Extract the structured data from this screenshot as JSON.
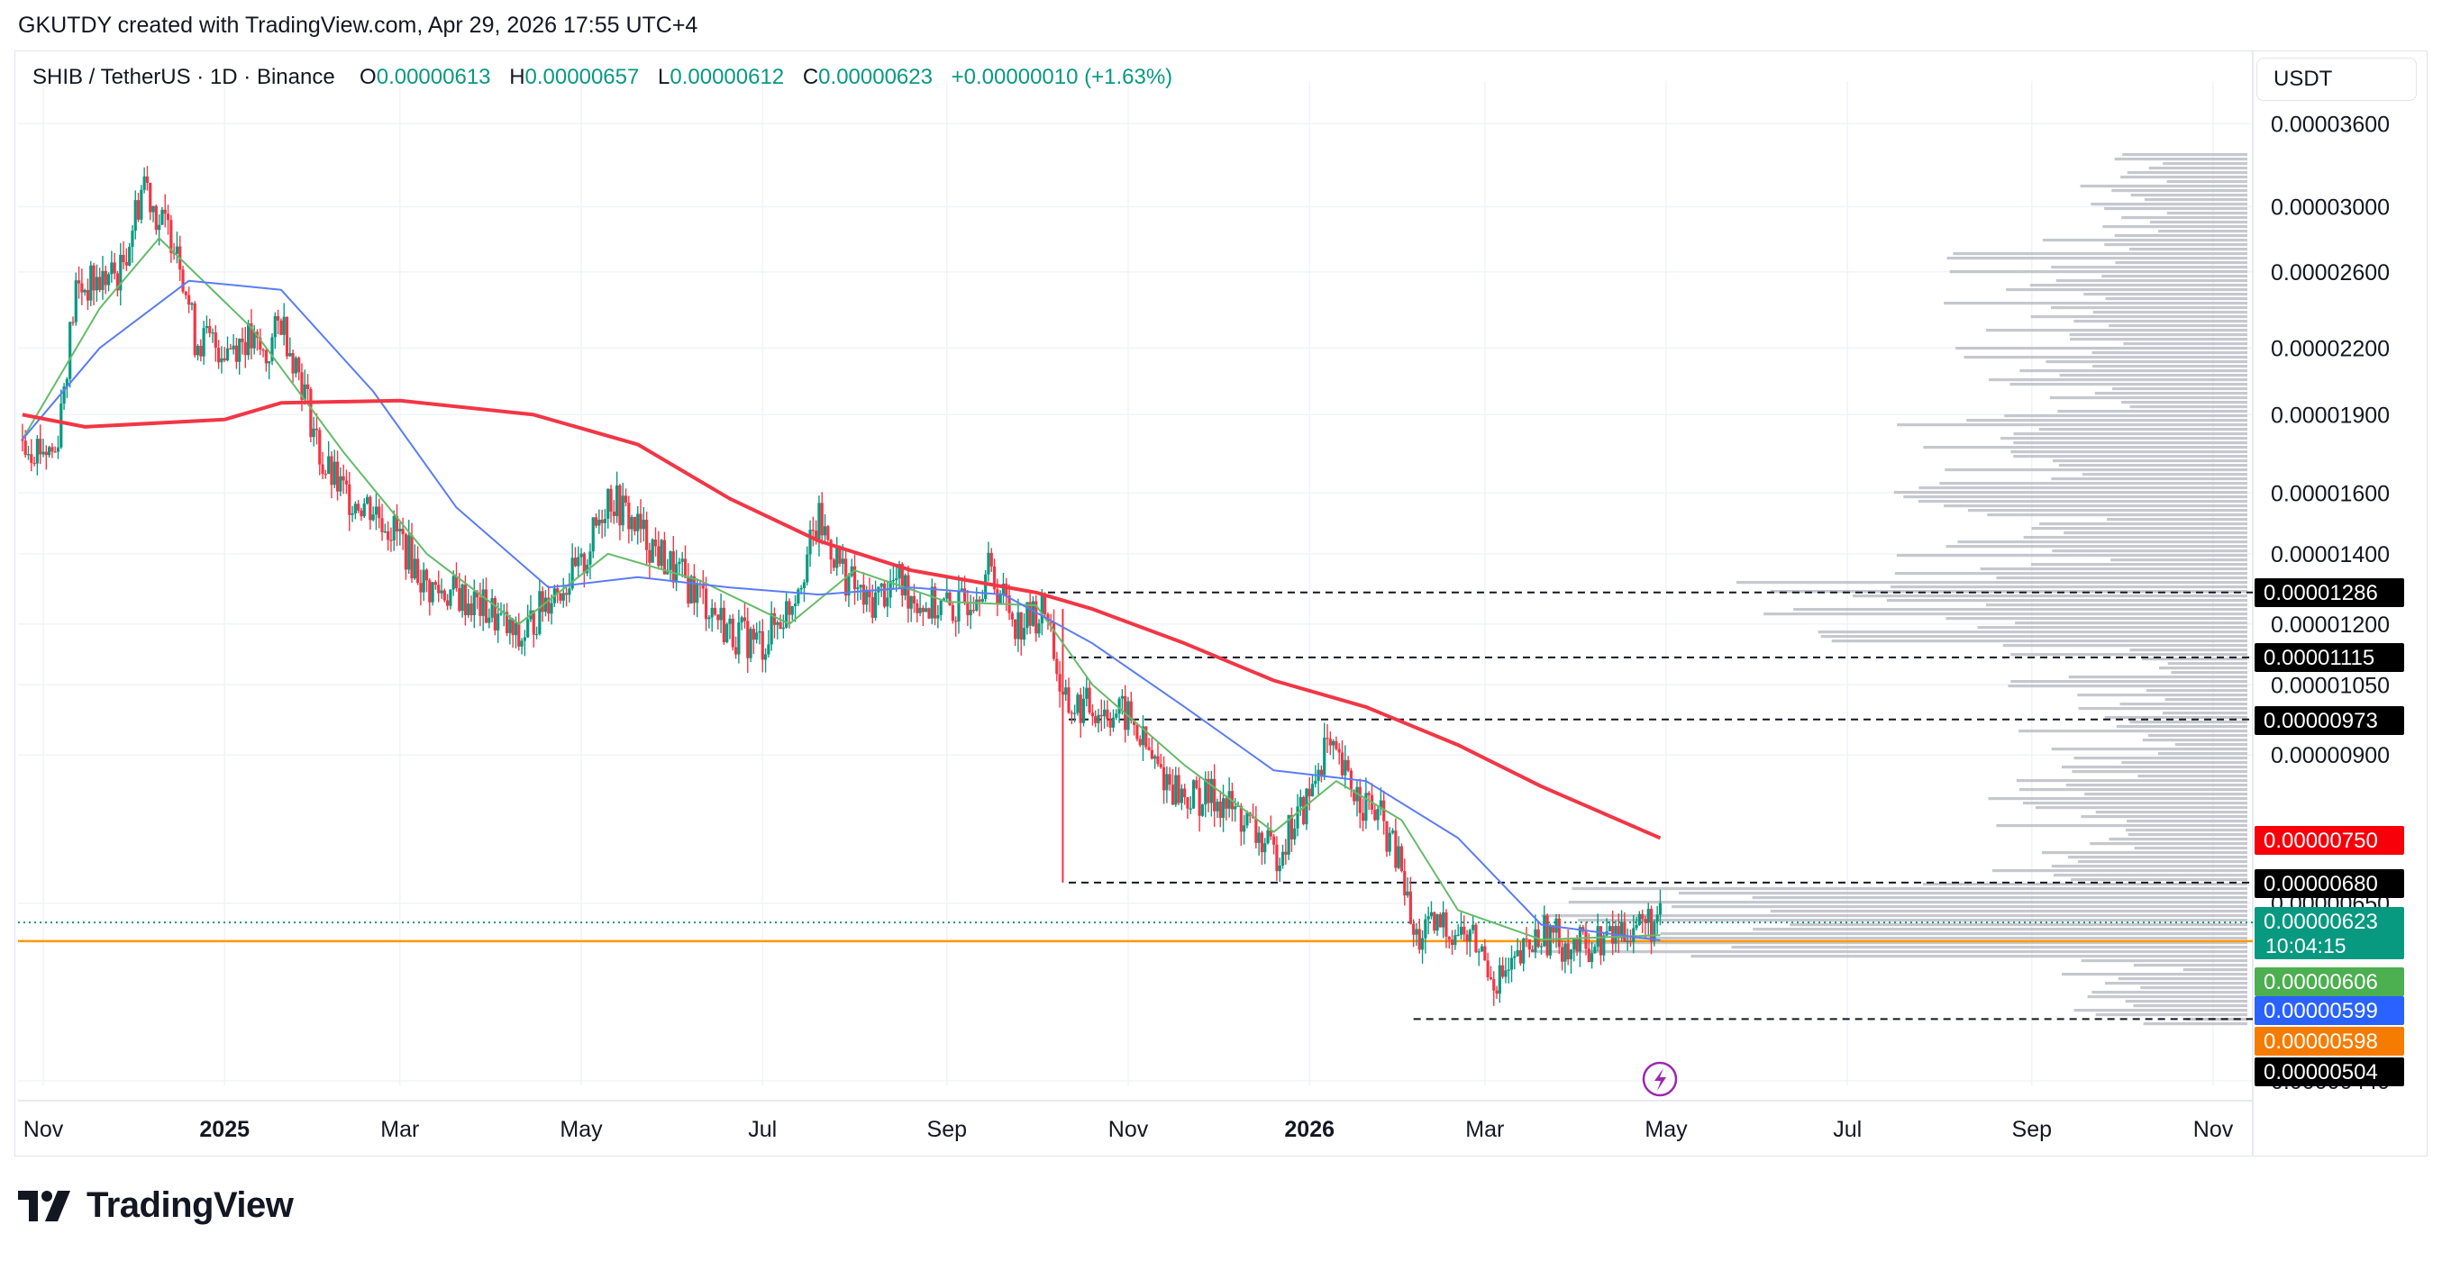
{
  "header": {
    "attribution": "GKUTDY created with TradingView.com, Apr 29, 2026 17:55 UTC+4"
  },
  "legend": {
    "symbol": "SHIB / TetherUS · 1D · Binance",
    "open_key": "O",
    "open": "0.00000613",
    "high_key": "H",
    "high": "0.00000657",
    "low_key": "L",
    "low": "0.00000612",
    "close_key": "C",
    "close": "0.00000623",
    "change": "+0.00000010 (+1.63%)"
  },
  "currency_button": "USDT",
  "footer": {
    "brand": "TradingView"
  },
  "colors": {
    "up": "#089981",
    "down": "#f23645",
    "ma_long": "#f23645",
    "ma_mid": "#5b7cf5",
    "ma_short": "#66bb6a",
    "volume_profile": "#b2b5be",
    "poc_line": "#ff9800"
  },
  "chart_data": {
    "type": "candlestick",
    "y_scale": "log",
    "ylim": [
      "0.00000420",
      "0.00004000"
    ],
    "x_tick_labels": [
      {
        "label": "Nov",
        "date": "2024-11-01",
        "bold": false
      },
      {
        "label": "2025",
        "date": "2025-01-01",
        "bold": true
      },
      {
        "label": "Mar",
        "date": "2025-03-01",
        "bold": false
      },
      {
        "label": "May",
        "date": "2025-05-01",
        "bold": false
      },
      {
        "label": "Jul",
        "date": "2025-07-01",
        "bold": false
      },
      {
        "label": "Sep",
        "date": "2025-09-01",
        "bold": false
      },
      {
        "label": "Nov",
        "date": "2025-11-01",
        "bold": false
      },
      {
        "label": "2026",
        "date": "2026-01-01",
        "bold": true
      },
      {
        "label": "Mar",
        "date": "2026-03-01",
        "bold": false
      },
      {
        "label": "May",
        "date": "2026-05-01",
        "bold": false
      },
      {
        "label": "Jul",
        "date": "2026-07-01",
        "bold": false
      },
      {
        "label": "Sep",
        "date": "2026-09-01",
        "bold": false
      },
      {
        "label": "Nov",
        "date": "2026-11-01",
        "bold": false
      }
    ],
    "y_tick_labels": [
      "0.00003600",
      "0.00003000",
      "0.00002600",
      "0.00002200",
      "0.00001900",
      "0.00001600",
      "0.00001400",
      "0.00001200",
      "0.00001050",
      "0.00000900",
      "0.00000650",
      "0.00000440"
    ],
    "price_series": [
      [
        "2024-10-25",
        1.8e-05
      ],
      [
        "2024-11-05",
        1.75e-05
      ],
      [
        "2024-11-12",
        2.5e-05
      ],
      [
        "2024-11-20",
        2.55e-05
      ],
      [
        "2024-11-27",
        2.6e-05
      ],
      [
        "2024-12-05",
        3.2e-05
      ],
      [
        "2024-12-10",
        2.9e-05
      ],
      [
        "2024-12-16",
        2.8e-05
      ],
      [
        "2024-12-22",
        2.25e-05
      ],
      [
        "2025-01-01",
        2.2e-05
      ],
      [
        "2025-01-08",
        2.25e-05
      ],
      [
        "2025-01-15",
        2.15e-05
      ],
      [
        "2025-01-20",
        2.35e-05
      ],
      [
        "2025-01-27",
        2.05e-05
      ],
      [
        "2025-02-03",
        1.7e-05
      ],
      [
        "2025-02-10",
        1.6e-05
      ],
      [
        "2025-02-20",
        1.55e-05
      ],
      [
        "2025-03-01",
        1.45e-05
      ],
      [
        "2025-03-10",
        1.3e-05
      ],
      [
        "2025-03-20",
        1.28e-05
      ],
      [
        "2025-04-01",
        1.23e-05
      ],
      [
        "2025-04-10",
        1.15e-05
      ],
      [
        "2025-04-20",
        1.28e-05
      ],
      [
        "2025-05-01",
        1.35e-05
      ],
      [
        "2025-05-10",
        1.6e-05
      ],
      [
        "2025-05-20",
        1.48e-05
      ],
      [
        "2025-06-01",
        1.35e-05
      ],
      [
        "2025-06-10",
        1.28e-05
      ],
      [
        "2025-06-20",
        1.18e-05
      ],
      [
        "2025-07-01",
        1.15e-05
      ],
      [
        "2025-07-10",
        1.25e-05
      ],
      [
        "2025-07-20",
        1.5e-05
      ],
      [
        "2025-07-28",
        1.35e-05
      ],
      [
        "2025-08-05",
        1.25e-05
      ],
      [
        "2025-08-15",
        1.32e-05
      ],
      [
        "2025-08-25",
        1.25e-05
      ],
      [
        "2025-09-05",
        1.24e-05
      ],
      [
        "2025-09-15",
        1.35e-05
      ],
      [
        "2025-09-25",
        1.2e-05
      ],
      [
        "2025-10-05",
        1.24e-05
      ],
      [
        "2025-10-10",
        1e-05
      ],
      [
        "2025-10-20",
        1e-05
      ],
      [
        "2025-11-01",
        9.8e-06
      ],
      [
        "2025-11-10",
        8.8e-06
      ],
      [
        "2025-11-20",
        8.2e-06
      ],
      [
        "2025-12-01",
        8.2e-06
      ],
      [
        "2025-12-10",
        7.8e-06
      ],
      [
        "2025-12-20",
        7.2e-06
      ],
      [
        "2026-01-01",
        8.2e-06
      ],
      [
        "2026-01-06",
        9.2e-06
      ],
      [
        "2026-01-15",
        8.4e-06
      ],
      [
        "2026-01-25",
        7.8e-06
      ],
      [
        "2026-02-01",
        7e-06
      ],
      [
        "2026-02-05",
        6e-06
      ],
      [
        "2026-02-15",
        6.2e-06
      ],
      [
        "2026-02-25",
        6e-06
      ],
      [
        "2026-03-05",
        5.5e-06
      ],
      [
        "2026-03-10",
        5.6e-06
      ],
      [
        "2026-03-20",
        6.1e-06
      ],
      [
        "2026-04-01",
        5.9e-06
      ],
      [
        "2026-04-10",
        6e-06
      ],
      [
        "2026-04-20",
        6.2e-06
      ],
      [
        "2026-04-29",
        6.23e-06
      ]
    ],
    "ma_long": [
      [
        "2024-10-25",
        1.9e-05
      ],
      [
        "2024-11-15",
        1.85e-05
      ],
      [
        "2025-01-01",
        1.88e-05
      ],
      [
        "2025-01-20",
        1.95e-05
      ],
      [
        "2025-03-01",
        1.96e-05
      ],
      [
        "2025-04-15",
        1.9e-05
      ],
      [
        "2025-05-20",
        1.78e-05
      ],
      [
        "2025-06-20",
        1.58e-05
      ],
      [
        "2025-07-20",
        1.44e-05
      ],
      [
        "2025-08-20",
        1.35e-05
      ],
      [
        "2025-10-01",
        1.286e-05
      ],
      [
        "2025-10-20",
        1.24e-05
      ],
      [
        "2025-11-20",
        1.15e-05
      ],
      [
        "2025-12-20",
        1.06e-05
      ],
      [
        "2026-01-20",
        1e-05
      ],
      [
        "2026-02-20",
        9.2e-06
      ],
      [
        "2026-03-20",
        8.4e-06
      ],
      [
        "2026-04-29",
        7.5e-06
      ]
    ],
    "ma_mid": [
      [
        "2024-10-25",
        1.8e-05
      ],
      [
        "2024-11-20",
        2.2e-05
      ],
      [
        "2024-12-20",
        2.55e-05
      ],
      [
        "2025-01-20",
        2.5e-05
      ],
      [
        "2025-02-20",
        2e-05
      ],
      [
        "2025-03-20",
        1.55e-05
      ],
      [
        "2025-04-20",
        1.3e-05
      ],
      [
        "2025-05-20",
        1.33e-05
      ],
      [
        "2025-06-20",
        1.3e-05
      ],
      [
        "2025-07-20",
        1.28e-05
      ],
      [
        "2025-08-20",
        1.3e-05
      ],
      [
        "2025-09-20",
        1.28e-05
      ],
      [
        "2025-10-20",
        1.15e-05
      ],
      [
        "2025-11-20",
        1e-05
      ],
      [
        "2025-12-20",
        8.7e-06
      ],
      [
        "2026-01-20",
        8.5e-06
      ],
      [
        "2026-02-20",
        7.5e-06
      ],
      [
        "2026-03-20",
        6.2e-06
      ],
      [
        "2026-04-29",
        5.99e-06
      ]
    ],
    "ma_short": [
      [
        "2024-10-25",
        1.8e-05
      ],
      [
        "2024-11-20",
        2.4e-05
      ],
      [
        "2024-12-10",
        2.8e-05
      ],
      [
        "2025-01-10",
        2.3e-05
      ],
      [
        "2025-02-10",
        1.75e-05
      ],
      [
        "2025-03-10",
        1.4e-05
      ],
      [
        "2025-04-10",
        1.2e-05
      ],
      [
        "2025-05-10",
        1.4e-05
      ],
      [
        "2025-06-10",
        1.32e-05
      ],
      [
        "2025-07-10",
        1.2e-05
      ],
      [
        "2025-08-01",
        1.35e-05
      ],
      [
        "2025-09-01",
        1.26e-05
      ],
      [
        "2025-10-01",
        1.25e-05
      ],
      [
        "2025-10-20",
        1.05e-05
      ],
      [
        "2025-11-20",
        8.8e-06
      ],
      [
        "2025-12-20",
        7.6e-06
      ],
      [
        "2026-01-10",
        8.5e-06
      ],
      [
        "2026-02-01",
        7.8e-06
      ],
      [
        "2026-02-20",
        6.4e-06
      ],
      [
        "2026-03-20",
        6e-06
      ],
      [
        "2026-04-29",
        6.06e-06
      ]
    ],
    "horizontal_levels": [
      {
        "price": "0.00001286",
        "from": "2025-10-05",
        "style": "dashed"
      },
      {
        "price": "0.00001115",
        "from": "2025-10-12",
        "style": "dashed"
      },
      {
        "price": "0.00000973",
        "from": "2025-10-12",
        "style": "dashed"
      },
      {
        "price": "0.00000680",
        "from": "2025-10-12",
        "style": "dashed"
      },
      {
        "price": "0.00000504",
        "from": "2026-02-05",
        "style": "dashed"
      },
      {
        "price": "0.00000598",
        "from": "2024-10-25",
        "style": "solid-orange"
      },
      {
        "price": "0.00000623",
        "from": "2024-10-25",
        "style": "dotted-green"
      }
    ],
    "volume_profile_note": "horizontal histogram along right side, price-based",
    "price_tags": [
      {
        "label": "0.00001286",
        "price": "0.00001286",
        "bg": "#000000"
      },
      {
        "label": "0.00001115",
        "price": "0.00001115",
        "bg": "#000000"
      },
      {
        "label": "0.00000973",
        "price": "0.00000973",
        "bg": "#000000"
      },
      {
        "label": "0.00000750",
        "price": "0.00000750",
        "bg": "#f7000a"
      },
      {
        "label": "0.00000680",
        "price": "0.00000680",
        "bg": "#000000"
      },
      {
        "label": "0.00000623",
        "price": "0.00000623",
        "bg": "#089981",
        "sub": "10:04:15"
      },
      {
        "label": "0.00000606",
        "price": "0.00000606",
        "bg": "#4caf50"
      },
      {
        "label": "0.00000599",
        "price": "0.00000599",
        "bg": "#2962ff"
      },
      {
        "label": "0.00000598",
        "price": "0.00000598",
        "bg": "#f57c00"
      },
      {
        "label": "0.00000504",
        "price": "0.00000504",
        "bg": "#000000"
      }
    ]
  }
}
